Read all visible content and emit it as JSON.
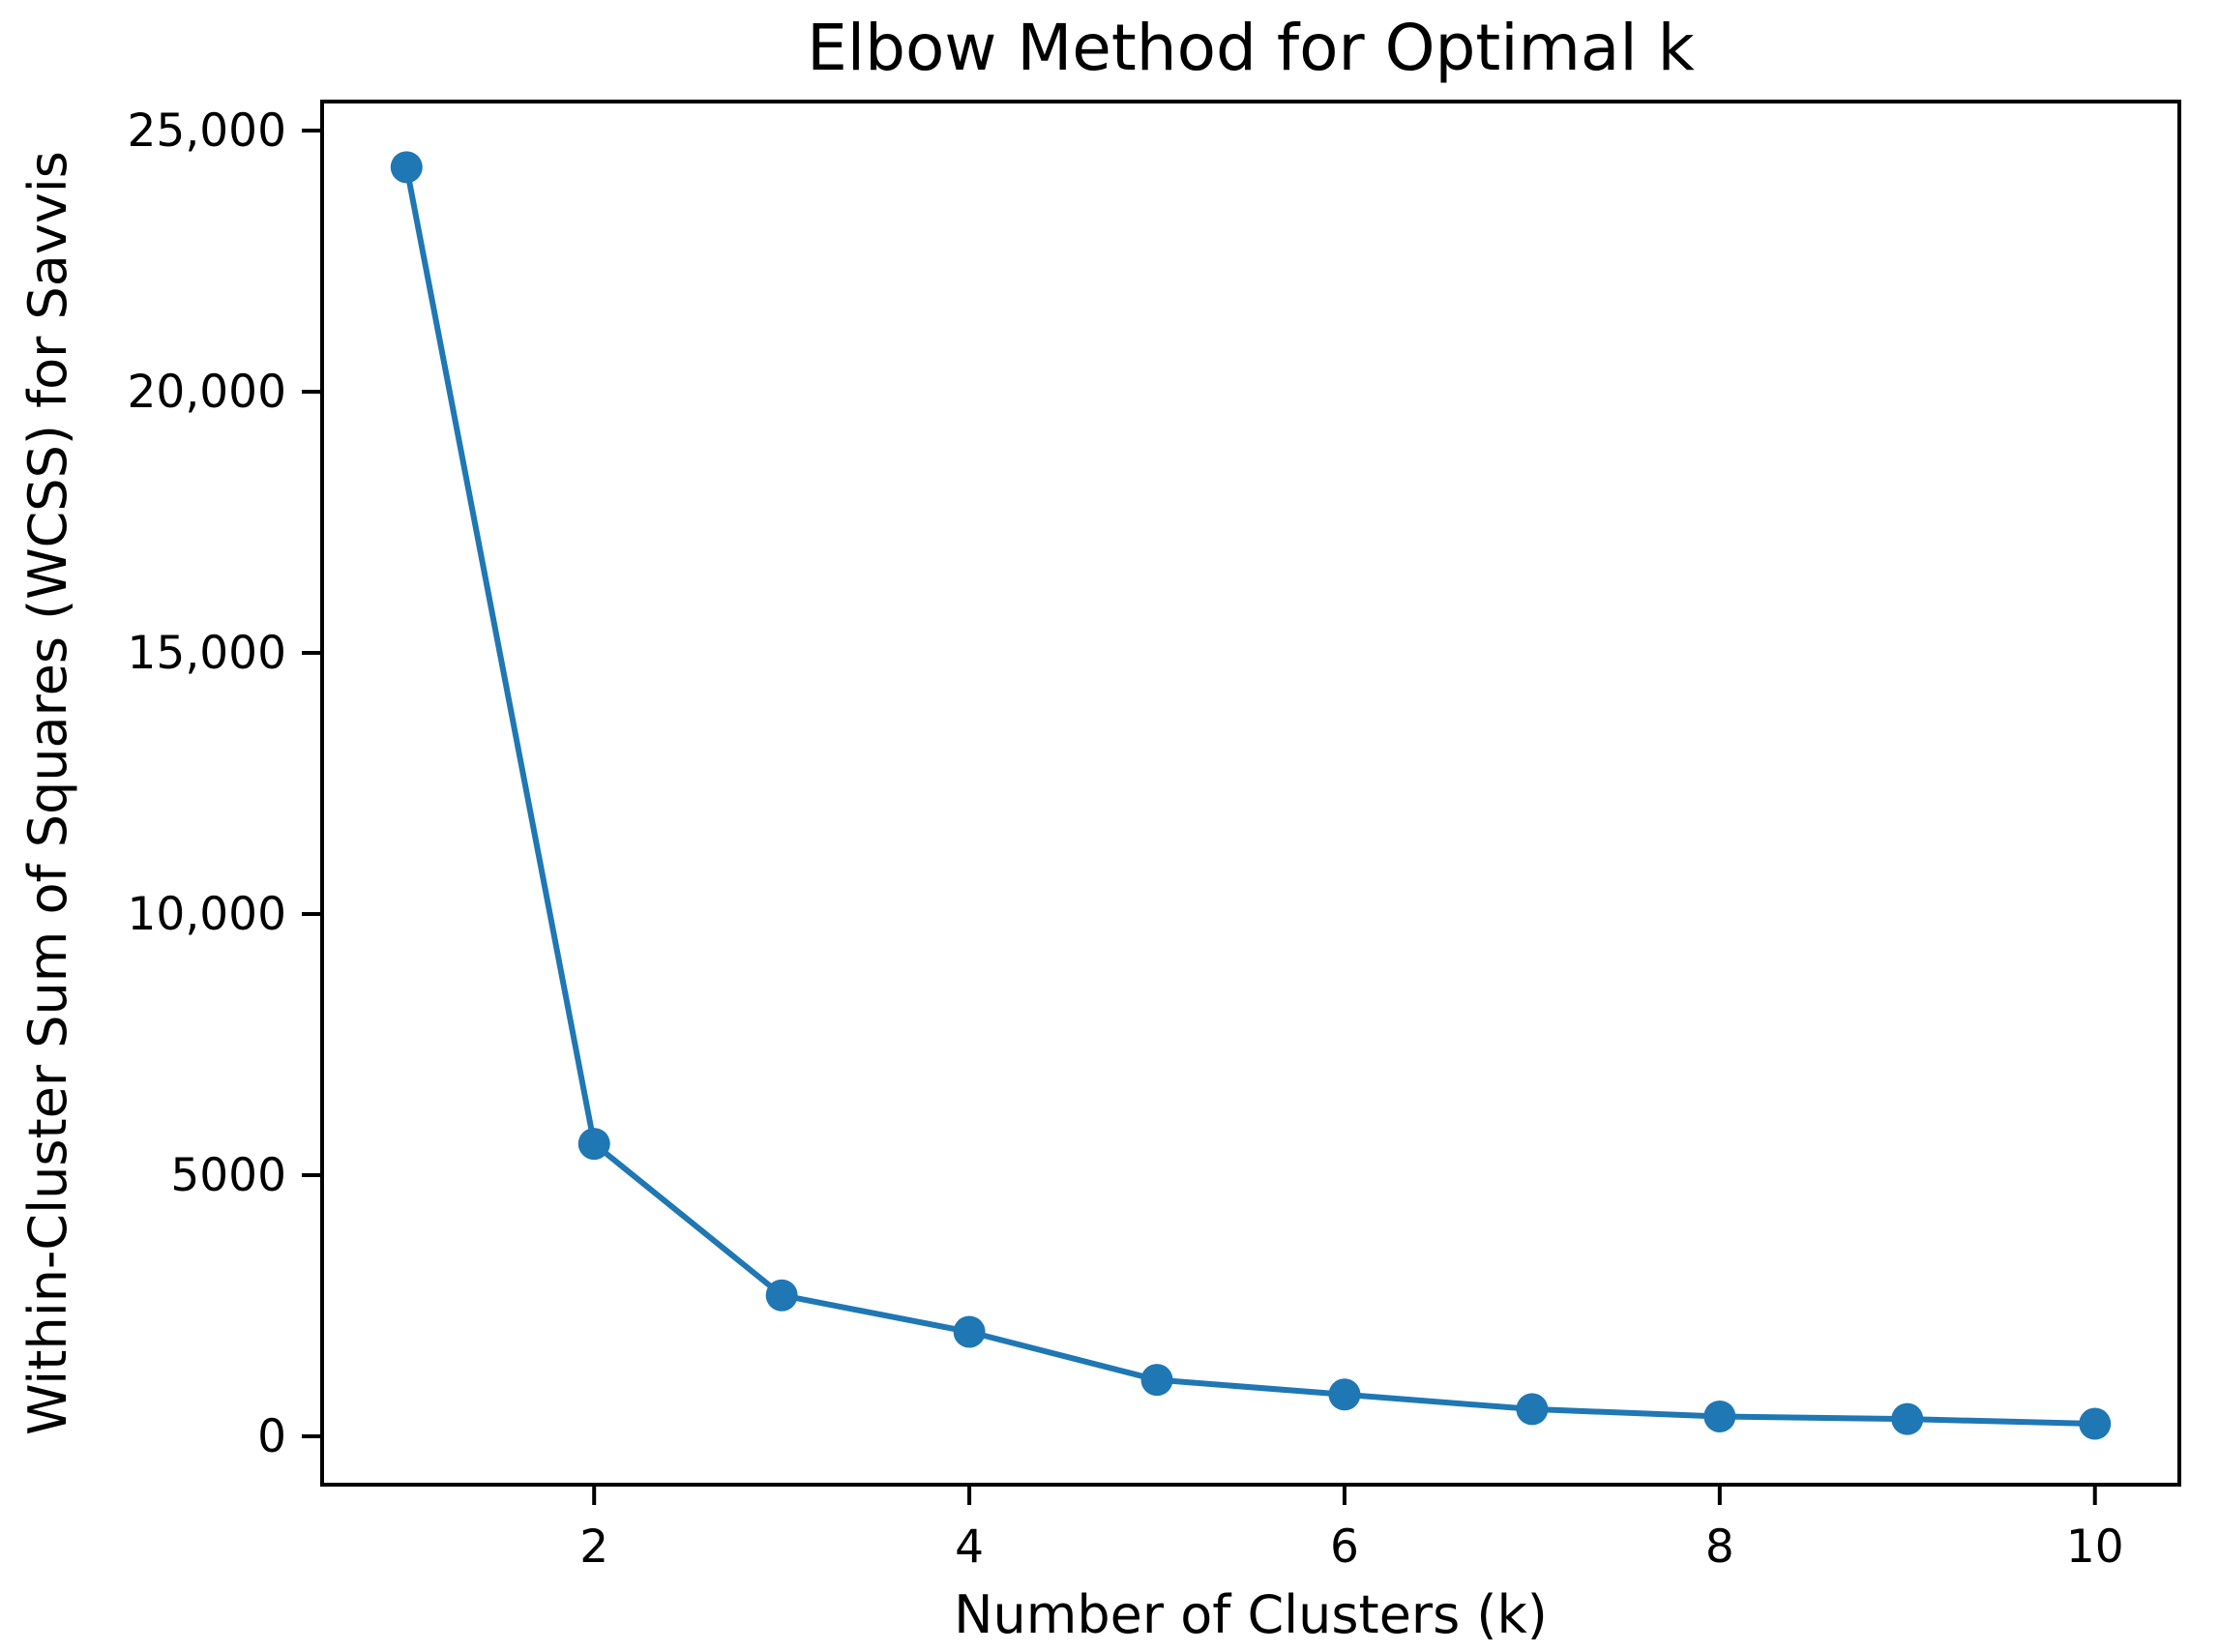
{
  "figure": {
    "background": "#ffffff"
  },
  "chart_data": {
    "type": "line",
    "title": "Elbow Method for Optimal k",
    "xlabel": "Number of Clusters (k)",
    "ylabel": "Within-Cluster Sum of Squares (WCSS) for Savvis",
    "series": [
      {
        "name": "WCSS",
        "x": [
          1,
          2,
          3,
          4,
          5,
          6,
          7,
          8,
          9,
          10
        ],
        "y": [
          24300,
          5600,
          2700,
          2000,
          1080,
          800,
          520,
          380,
          330,
          240
        ]
      }
    ],
    "xticks": [
      {
        "value": 2,
        "label": "2"
      },
      {
        "value": 4,
        "label": "4"
      },
      {
        "value": 6,
        "label": "6"
      },
      {
        "value": 8,
        "label": "8"
      },
      {
        "value": 10,
        "label": "10"
      }
    ],
    "yticks": [
      {
        "value": 0,
        "label": "0"
      },
      {
        "value": 5000,
        "label": "5000"
      },
      {
        "value": 10000,
        "label": "10,000"
      },
      {
        "value": 15000,
        "label": "15,000"
      },
      {
        "value": 20000,
        "label": "20,000"
      },
      {
        "value": 25000,
        "label": "25,000"
      }
    ],
    "xlim": [
      0.55,
      10.45
    ],
    "ylim": [
      -926,
      25556
    ],
    "grid": false,
    "legend": "none",
    "marker": "circle",
    "line_color": "#1f77b4",
    "marker_color": "#1f77b4",
    "axis_color": "#000000",
    "text_color": "#000000",
    "plot_background": "#ffffff"
  }
}
